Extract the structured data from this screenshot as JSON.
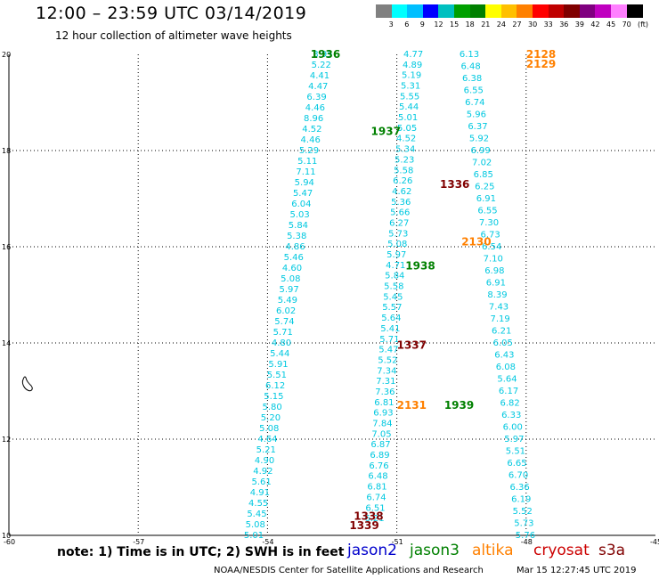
{
  "header": {
    "title": "12:00 – 23:59 UTC 03/14/2019",
    "subtitle": "12 hour collection of altimeter wave heights"
  },
  "legend": {
    "unit": "(ft)",
    "colors": [
      "#808080",
      "#00ffff",
      "#00bfff",
      "#0000ff",
      "#00c0c0",
      "#00a000",
      "#008000",
      "#ffff00",
      "#ffc000",
      "#ff8000",
      "#ff0000",
      "#c00000",
      "#800000",
      "#800080",
      "#c000c0",
      "#ff80ff",
      "#000000"
    ],
    "labels": [
      "3",
      "6",
      "9",
      "12",
      "15",
      "18",
      "21",
      "24",
      "27",
      "30",
      "33",
      "36",
      "39",
      "42",
      "45",
      "70"
    ]
  },
  "axes": {
    "x_ticks": [
      "-60",
      "-57",
      "-54",
      "-51",
      "-48",
      "-45"
    ],
    "y_ticks": [
      "20",
      "18",
      "16",
      "14",
      "12",
      "10"
    ]
  },
  "passes": [
    {
      "label": "1936",
      "color": "#008000",
      "values": [
        "3.95",
        "5.22",
        "4.41",
        "4.47",
        "6.39",
        "4.46",
        "8.96",
        "4.52",
        "4.46",
        "5.29",
        "5.11",
        "7.11",
        "5.94",
        "5.47",
        "6.04",
        "5.03",
        "5.84",
        "5.38",
        "4.86",
        "5.46",
        "4.60",
        "5.08",
        "5.97",
        "5.49",
        "6.02",
        "5.74",
        "5.71",
        "4.80",
        "5.44",
        "5.91",
        "5.51",
        "6.12",
        "5.15",
        "5.80",
        "5.20",
        "5.08",
        "4.64",
        "5.21",
        "4.90",
        "4.92",
        "5.61",
        "4.91",
        "4.55",
        "5.45",
        "5.08",
        "5.01"
      ]
    },
    {
      "label": "1937",
      "color": "#008000",
      "values": [
        "4.77",
        "4.89",
        "5.19",
        "5.31",
        "5.55",
        "5.44",
        "5.01",
        "5.05",
        "4.52",
        "5.34",
        "5.23",
        "5.58",
        "6.26",
        "4.62",
        "5.36",
        "5.66",
        "6.27",
        "5.73",
        "5.08",
        "5.97",
        "4.71",
        "5.84",
        "5.58",
        "5.45",
        "5.57",
        "5.64",
        "5.41",
        "5.71",
        "5.47",
        "5.52",
        "7.34",
        "7.31",
        "7.36",
        "6.81",
        "6.93",
        "7.84",
        "7.05",
        "6.87",
        "6.89",
        "6.76",
        "6.48",
        "6.81",
        "6.74",
        "6.51",
        "6.21"
      ]
    },
    {
      "label": "2128",
      "color": "#ff8000",
      "values": [
        "6.13",
        "6.48",
        "6.38",
        "6.55",
        "6.74",
        "5.96",
        "6.37",
        "5.92",
        "6.99",
        "7.02",
        "6.85",
        "6.25",
        "6.91",
        "6.55",
        "7.30",
        "6.73",
        "6.54",
        "7.10",
        "6.98",
        "6.91",
        "8.39",
        "7.43",
        "7.19",
        "6.21",
        "6.05",
        "6.43",
        "6.08",
        "5.64",
        "6.17",
        "6.82",
        "6.33",
        "6.00",
        "5.97",
        "5.51",
        "6.65",
        "6.70",
        "6.36",
        "6.19",
        "5.52",
        "5.73",
        "5.76"
      ]
    }
  ],
  "markers": [
    {
      "label": "1936",
      "color": "#008000"
    },
    {
      "label": "1937",
      "color": "#008000"
    },
    {
      "label": "1938",
      "color": "#008000"
    },
    {
      "label": "1939",
      "color": "#008000"
    },
    {
      "label": "2128",
      "color": "#ff8000"
    },
    {
      "label": "2129",
      "color": "#ff8000"
    },
    {
      "label": "2130",
      "color": "#ff8000"
    },
    {
      "label": "2131",
      "color": "#ff8000"
    },
    {
      "label": "1336",
      "color": "#800000"
    },
    {
      "label": "1337",
      "color": "#800000"
    },
    {
      "label": "1338",
      "color": "#800000"
    },
    {
      "label": "1339",
      "color": "#800000"
    }
  ],
  "footer": {
    "note": "note: 1) Time is in UTC; 2) SWH is in feet",
    "satellites": [
      {
        "name": "jason2",
        "color": "#0000cc"
      },
      {
        "name": "jason3",
        "color": "#008000"
      },
      {
        "name": "altika",
        "color": "#ff8000"
      },
      {
        "name": "cryosat",
        "color": "#cc0000"
      },
      {
        "name": "s3a",
        "color": "#800000"
      }
    ],
    "credit": "NOAA/NESDIS Center for Satellite Applications and Research",
    "timestamp": "Mar 15 12:27:45 UTC 2019"
  }
}
